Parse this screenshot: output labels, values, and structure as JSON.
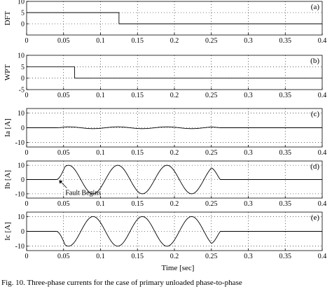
{
  "xlabel": "Time [sec]",
  "caption": "Fig. 10.   Three-phase currents for the case of primary unloaded phase-to-phase",
  "chart_data": [
    {
      "type": "line",
      "tag": "(a)",
      "ylabel": "DFT",
      "xlim": [
        0,
        0.4
      ],
      "ylim": [
        -5,
        10
      ],
      "xticks": [
        0,
        0.05,
        0.1,
        0.15,
        0.2,
        0.25,
        0.3,
        0.35,
        0.4
      ],
      "xtick_labels": [
        "0",
        "0.05",
        "0.1",
        "0.15",
        "0.2",
        "0.25",
        "0.3",
        "0.35",
        "0.4"
      ],
      "yticks": [
        0,
        5,
        10
      ],
      "ytick_labels": [
        "0",
        "5",
        "10"
      ],
      "series": [
        {
          "kind": "step",
          "points": [
            [
              0,
              5
            ],
            [
              0.125,
              5
            ],
            [
              0.125,
              0
            ],
            [
              0.4,
              0
            ]
          ]
        }
      ]
    },
    {
      "type": "line",
      "tag": "(b)",
      "ylabel": "WPT",
      "xlim": [
        0,
        0.4
      ],
      "ylim": [
        -5,
        10
      ],
      "xticks": [
        0,
        0.05,
        0.1,
        0.15,
        0.2,
        0.25,
        0.3,
        0.35,
        0.4
      ],
      "xtick_labels": [
        "0",
        "0.05",
        "0.1",
        "0.15",
        "0.2",
        "0.25",
        "0.3",
        "0.35",
        "0.4"
      ],
      "yticks": [
        -5,
        0,
        5,
        10
      ],
      "ytick_labels": [
        "-5",
        "0",
        "5",
        "10"
      ],
      "series": [
        {
          "kind": "step",
          "points": [
            [
              0,
              5
            ],
            [
              0.065,
              5
            ],
            [
              0.065,
              0
            ],
            [
              0.4,
              0
            ]
          ]
        }
      ]
    },
    {
      "type": "line",
      "tag": "(c)",
      "ylabel": "Ia [A]",
      "xlim": [
        0,
        0.4
      ],
      "ylim": [
        -13,
        13
      ],
      "xticks": [
        0,
        0.05,
        0.1,
        0.15,
        0.2,
        0.25,
        0.3,
        0.35,
        0.4
      ],
      "xtick_labels": [
        "0",
        "0.05",
        "0.1",
        "0.15",
        "0.2",
        "0.25",
        "0.3",
        "0.35",
        "0.4"
      ],
      "yticks": [
        -10,
        0,
        10
      ],
      "ytick_labels": [
        "-10",
        "0",
        "10"
      ],
      "series": [
        {
          "kind": "wave",
          "fault_start": 0.04,
          "fault_end": 0.25,
          "peak": 0.6,
          "freq": 15
        }
      ]
    },
    {
      "type": "line",
      "tag": "(d)",
      "ylabel": "Ib [A]",
      "xlim": [
        0,
        0.4
      ],
      "ylim": [
        -13,
        13
      ],
      "xticks": [
        0,
        0.05,
        0.1,
        0.15,
        0.2,
        0.25,
        0.3,
        0.35,
        0.4
      ],
      "xtick_labels": [
        "0",
        "0.05",
        "0.1",
        "0.15",
        "0.2",
        "0.25",
        "0.3",
        "0.35",
        "0.4"
      ],
      "yticks": [
        -10,
        0,
        10
      ],
      "ytick_labels": [
        "-10",
        "0",
        "10"
      ],
      "series": [
        {
          "kind": "wave",
          "fault_start": 0.04,
          "fault_end": 0.25,
          "peak": 10,
          "freq": 15,
          "sign": 1
        }
      ],
      "annotation": {
        "text": "Fault Begins",
        "x": 0.043,
        "y": 0
      }
    },
    {
      "type": "line",
      "tag": "(e)",
      "ylabel": "Ic [A]",
      "xlim": [
        0,
        0.4
      ],
      "ylim": [
        -13,
        13
      ],
      "xticks": [
        0,
        0.05,
        0.1,
        0.15,
        0.2,
        0.25,
        0.3,
        0.35,
        0.4
      ],
      "xtick_labels": [
        "0",
        "0.05",
        "0.1",
        "0.15",
        "0.2",
        "0.25",
        "0.3",
        "0.35",
        "0.4"
      ],
      "yticks": [
        -10,
        0,
        10
      ],
      "ytick_labels": [
        "-10",
        "0",
        "10"
      ],
      "series": [
        {
          "kind": "wave",
          "fault_start": 0.04,
          "fault_end": 0.25,
          "peak": 10,
          "freq": 15,
          "sign": -1
        }
      ]
    }
  ]
}
